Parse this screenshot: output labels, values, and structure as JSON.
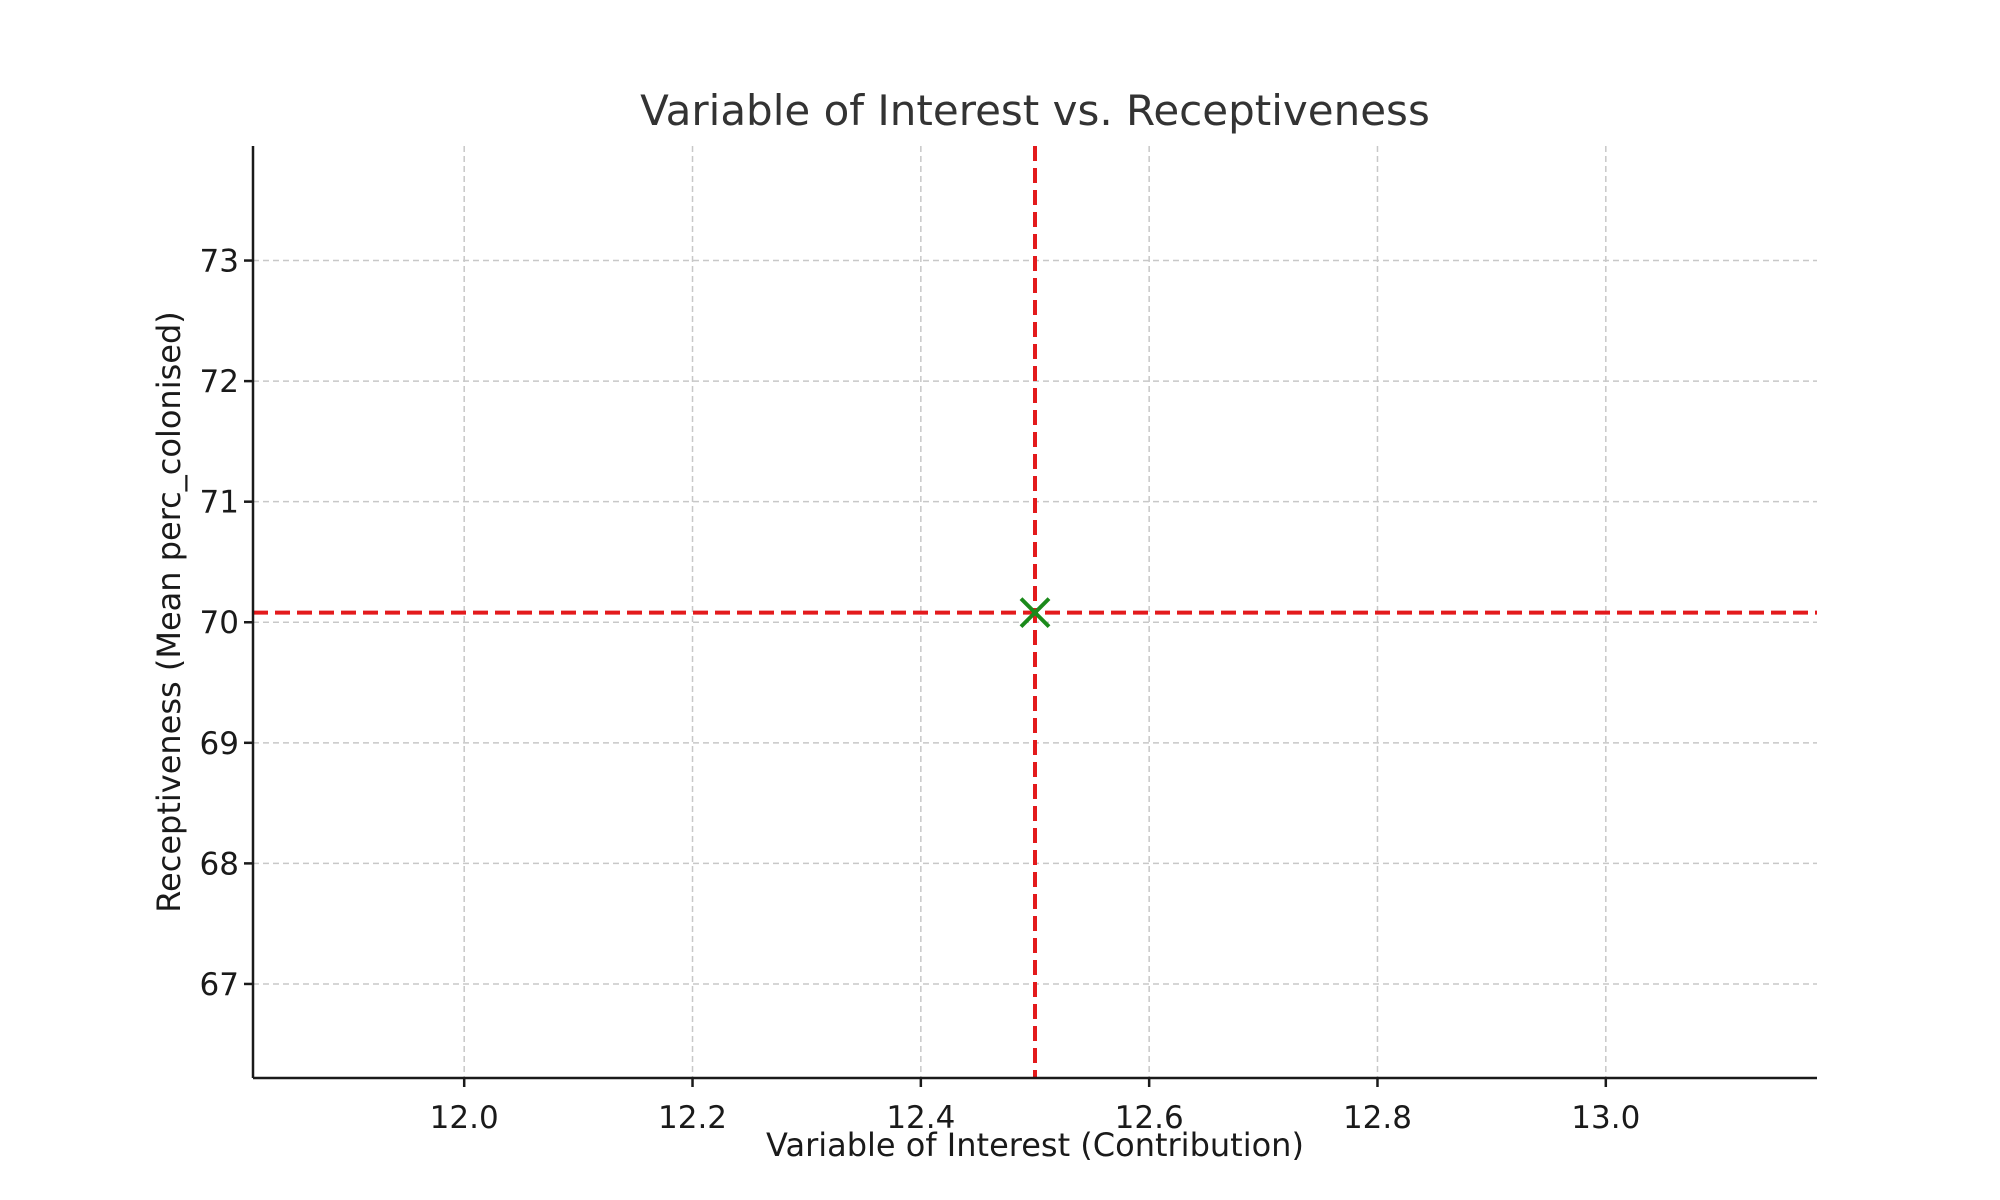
{
  "chart_data": {
    "type": "scatter",
    "title": "Variable of Interest vs. Receptiveness",
    "xlabel": "Variable of Interest (Contribution)",
    "ylabel": "Receptiveness (Mean perc_colonised)",
    "xlim": [
      11.815,
      13.185
    ],
    "ylim": [
      66.22,
      73.95
    ],
    "x_ticks": [
      12.0,
      12.2,
      12.4,
      12.6,
      12.8,
      13.0
    ],
    "x_tick_labels": [
      "12.0",
      "12.2",
      "12.4",
      "12.6",
      "12.8",
      "13.0"
    ],
    "y_ticks": [
      67,
      68,
      69,
      70,
      71,
      72,
      73
    ],
    "y_tick_labels": [
      "67",
      "68",
      "69",
      "70",
      "71",
      "72",
      "73"
    ],
    "grid": true,
    "points": [
      {
        "x": 12.5,
        "y": 70.08
      }
    ],
    "reference_lines": [
      {
        "orientation": "vertical",
        "value": 12.5
      },
      {
        "orientation": "horizontal",
        "value": 70.08
      }
    ],
    "colors": {
      "reference_line": "#e31a1c",
      "marker": "#1a8a1a",
      "grid": "#c8c8c8",
      "axis": "#1a1a1a"
    },
    "marker_shape": "x"
  }
}
